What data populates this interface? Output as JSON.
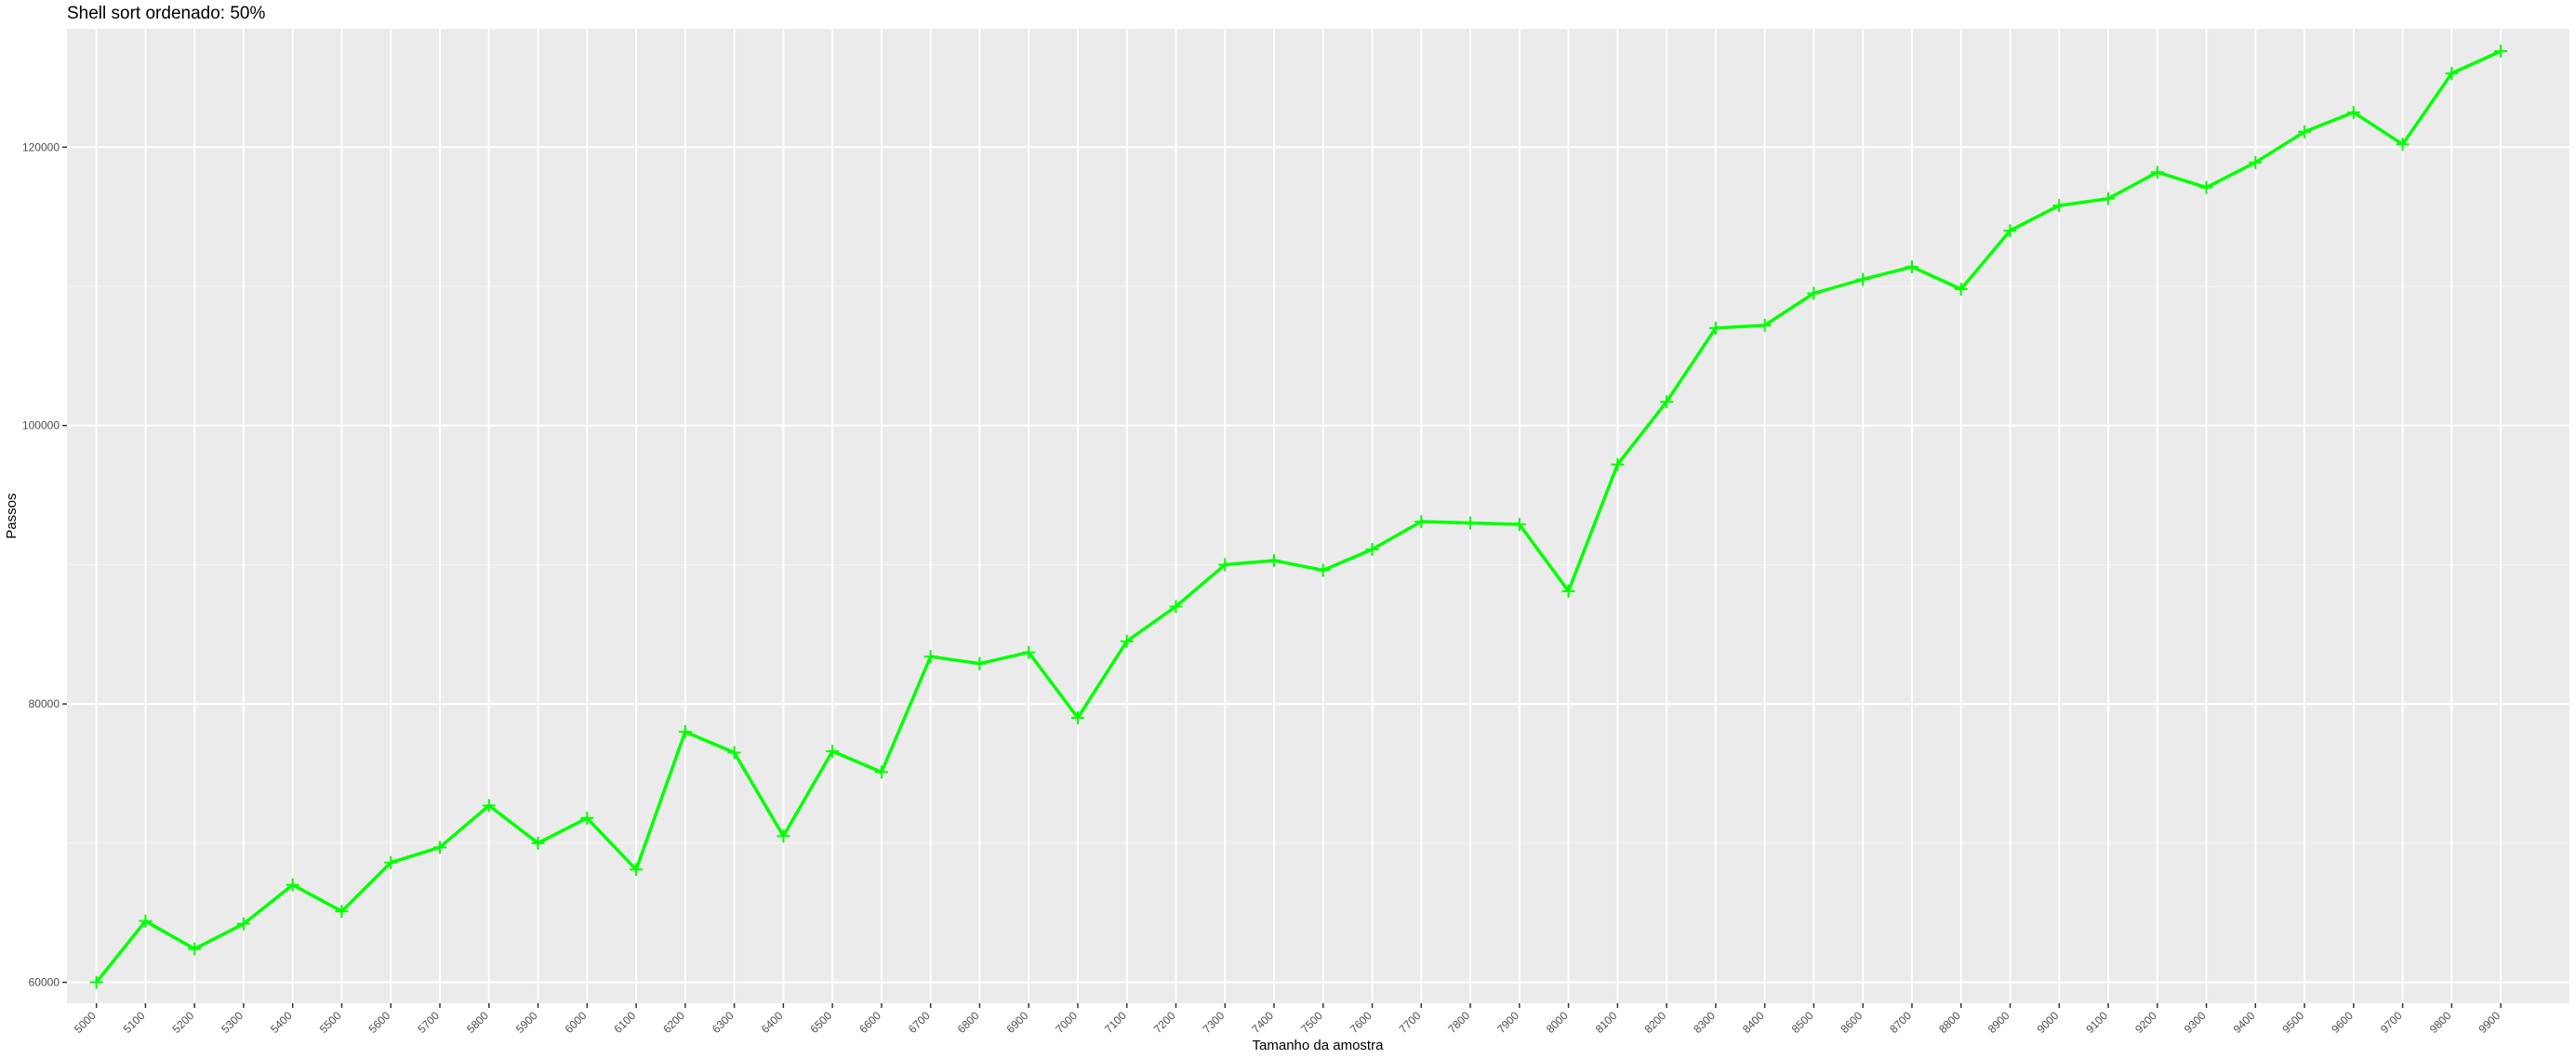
{
  "chart_data": {
    "type": "line",
    "title": "Shell sort ordenado: 50%",
    "xlabel": "Tamanho da amostra",
    "ylabel": "Passos",
    "x": [
      5000,
      5100,
      5200,
      5300,
      5400,
      5500,
      5600,
      5700,
      5800,
      5900,
      6000,
      6100,
      6200,
      6300,
      6400,
      6500,
      6600,
      6700,
      6800,
      6900,
      7000,
      7100,
      7200,
      7300,
      7400,
      7500,
      7600,
      7700,
      7800,
      7900,
      8000,
      8100,
      8200,
      8300,
      8400,
      8500,
      8600,
      8700,
      8800,
      8900,
      9000,
      9100,
      9200,
      9300,
      9400,
      9500,
      9600,
      9700,
      9800,
      9900
    ],
    "y_ticks": [
      60000,
      80000,
      100000,
      120000
    ],
    "ylim": [
      58500,
      128500
    ],
    "xlim": [
      4940,
      10040
    ],
    "series": [
      {
        "color": "#00ff00",
        "marker": "plus",
        "values": [
          60000,
          64400,
          62400,
          64200,
          67000,
          65100,
          68600,
          69700,
          72700,
          70000,
          71800,
          68100,
          78000,
          76500,
          70500,
          76600,
          75100,
          83400,
          82900,
          83700,
          79000,
          84500,
          87000,
          90000,
          90300,
          89600,
          91100,
          93100,
          93000,
          92900,
          88100,
          97200,
          101700,
          107000,
          107200,
          109500,
          110500,
          111400,
          109800,
          114000,
          115800,
          116300,
          118200,
          117100,
          118900,
          121100,
          122500,
          120200,
          125300,
          126900
        ]
      }
    ],
    "grid": true,
    "legend": "none",
    "background": "#ebebeb",
    "grid_color": "#ffffff"
  }
}
